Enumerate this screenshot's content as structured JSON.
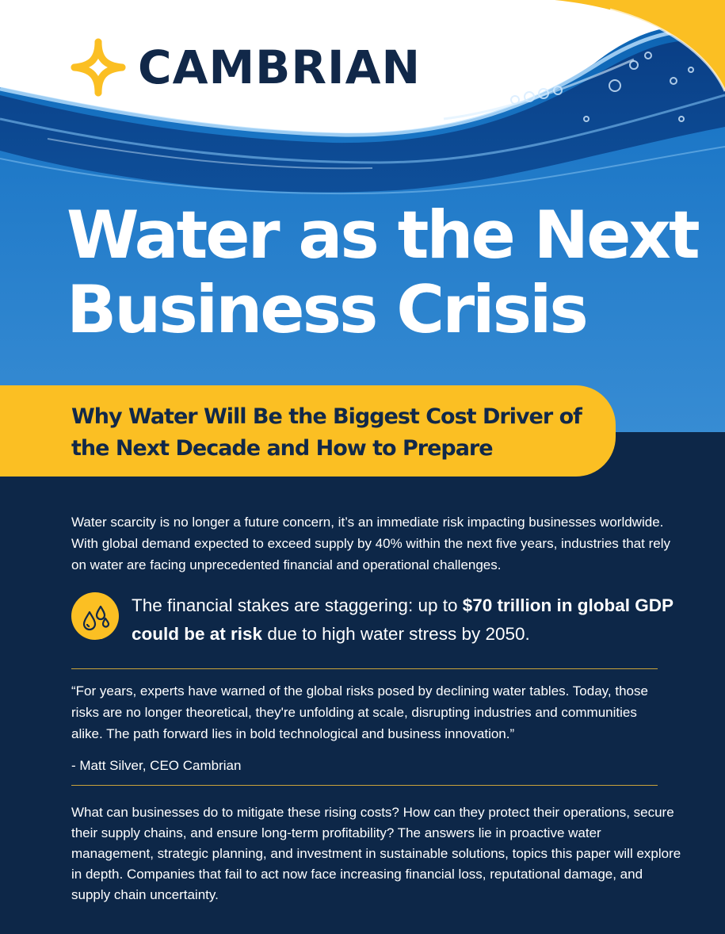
{
  "brand": {
    "name": "CAMBRIAN",
    "colors": {
      "navy": "#0d2748",
      "gold": "#fbbf23",
      "water_blue": "#1a76c6"
    }
  },
  "hero": {
    "title_line1": "Water as the Next",
    "title_line2": "Business Crisis"
  },
  "subtitle": {
    "line1": "Why Water Will Be the Biggest Cost Driver of",
    "line2": "the Next Decade and How to Prepare"
  },
  "intro": "Water scarcity is no longer a future concern, it’s an immediate risk impacting businesses worldwide. With global demand expected to exceed supply by 40% within the next five years, industries that rely on water are facing unprecedented financial and operational challenges.",
  "callout": {
    "icon": "water-drops-icon",
    "lead": "The financial stakes are staggering: up to ",
    "bold": "$70 trillion in global GDP could be at risk",
    "tail": " due to high water stress by 2050."
  },
  "quote": {
    "text": "“For years, experts have warned of the global risks posed by declining water tables. Today, those risks are no longer theoretical, they're unfolding at scale, disrupting industries and communities alike. The path forward lies in bold technological and business innovation.”",
    "attribution": "- Matt Silver, CEO Cambrian"
  },
  "closing": "What can businesses do to mitigate these rising costs? How can they protect their operations, secure their supply chains, and ensure long-term profitability? The answers lie in proactive water management, strategic planning, and investment in sustainable solutions, topics this paper will explore in depth. Companies that fail to act now face increasing financial loss, reputational damage, and supply chain uncertainty."
}
